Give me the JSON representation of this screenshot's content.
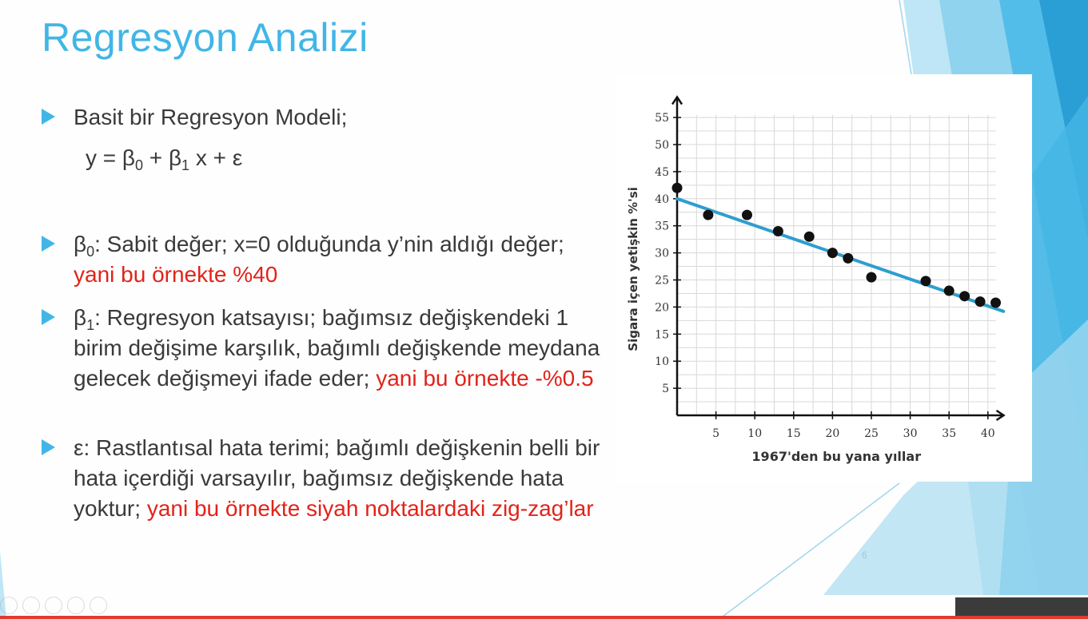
{
  "slide": {
    "title": "Regresyon Analizi",
    "page_number": "6",
    "bullets": [
      {
        "text": "Basit bir Regresyon Modeli;"
      },
      {
        "b0_symbol": "β",
        "b0_sub": "0",
        "text": ": Sabit değer; x=0 olduğunda y’nin aldığı değer; ",
        "red": "yani bu örnekte %40"
      },
      {
        "b1_symbol": "β",
        "b1_sub": "1",
        "text": ": Regresyon katsayısı; bağımsız değişkendeki 1 birim değişime karşılık, bağımlı değişkende meydana gelecek değişmeyi ifade eder; ",
        "red": "yani bu örnekte -%0.5"
      },
      {
        "text": "ε: Rastlantısal hata terimi; bağımlı değişkenin belli bir hata içerdiği varsayılır, bağımsız değişkende hata yoktur; ",
        "red": "yani bu örnekte siyah noktalardaki zig-zag’lar"
      }
    ],
    "formula": {
      "lhs": "y = β",
      "sub0": "0",
      "mid": " + β",
      "sub1": "1",
      "rhs": " x + ε"
    },
    "colors": {
      "accent": "#41b6e6",
      "highlight": "#e2231a",
      "regression_line": "#2e9ecf"
    }
  },
  "chart_data": {
    "type": "scatter",
    "xlabel": "1967'den bu yana yıllar",
    "ylabel": "Sigara içen yetişkin %'si",
    "xlim": [
      0,
      41
    ],
    "ylim": [
      0,
      57
    ],
    "x_ticks": [
      5,
      10,
      15,
      20,
      25,
      30,
      35,
      40
    ],
    "y_ticks": [
      5,
      10,
      15,
      20,
      25,
      30,
      35,
      40,
      45,
      50,
      55
    ],
    "grid": true,
    "points": [
      {
        "x": 0,
        "y": 42
      },
      {
        "x": 4,
        "y": 37
      },
      {
        "x": 9,
        "y": 37
      },
      {
        "x": 13,
        "y": 34
      },
      {
        "x": 17,
        "y": 33
      },
      {
        "x": 20,
        "y": 30
      },
      {
        "x": 22,
        "y": 29
      },
      {
        "x": 25,
        "y": 25.5
      },
      {
        "x": 32,
        "y": 24.8
      },
      {
        "x": 35,
        "y": 23
      },
      {
        "x": 37,
        "y": 22
      },
      {
        "x": 39,
        "y": 21
      },
      {
        "x": 41,
        "y": 20.8
      }
    ],
    "regression_line": {
      "x": [
        0,
        42
      ],
      "y": [
        40,
        19.2
      ]
    }
  }
}
